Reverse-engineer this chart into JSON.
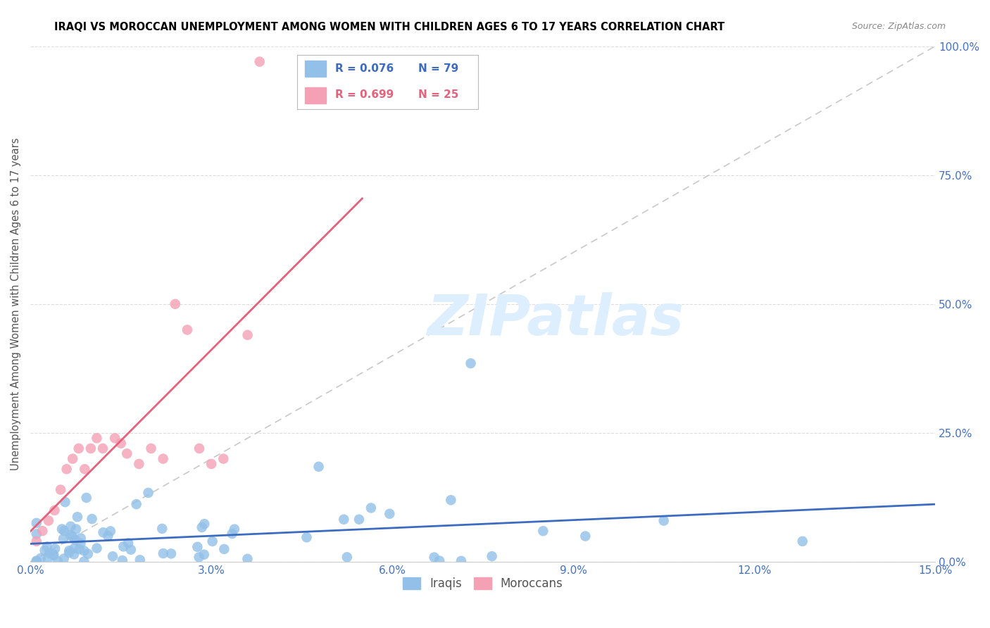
{
  "title": "IRAQI VS MOROCCAN UNEMPLOYMENT AMONG WOMEN WITH CHILDREN AGES 6 TO 17 YEARS CORRELATION CHART",
  "source": "Source: ZipAtlas.com",
  "ylabel": "Unemployment Among Women with Children Ages 6 to 17 years",
  "xlim": [
    0.0,
    0.15
  ],
  "ylim": [
    0.0,
    1.0
  ],
  "xtick_vals": [
    0.0,
    0.03,
    0.06,
    0.09,
    0.12,
    0.15
  ],
  "xtick_labels": [
    "0.0%",
    "3.0%",
    "6.0%",
    "9.0%",
    "12.0%",
    "15.0%"
  ],
  "ytick_vals": [
    0.0,
    0.25,
    0.5,
    0.75,
    1.0
  ],
  "ytick_labels": [
    "0.0%",
    "25.0%",
    "50.0%",
    "75.0%",
    "100.0%"
  ],
  "iraqis_color": "#92c0e8",
  "moroccans_color": "#f4a0b5",
  "iraqi_R": 0.076,
  "iraqi_N": 79,
  "moroccan_R": 0.699,
  "moroccan_N": 25,
  "iraqi_line_color": "#3c6bbf",
  "moroccan_line_color": "#e8607a",
  "reference_line_color": "#c8c8c8",
  "watermark": "ZIPatlas",
  "watermark_color": "#ddeeff",
  "grid_color": "#dddddd"
}
